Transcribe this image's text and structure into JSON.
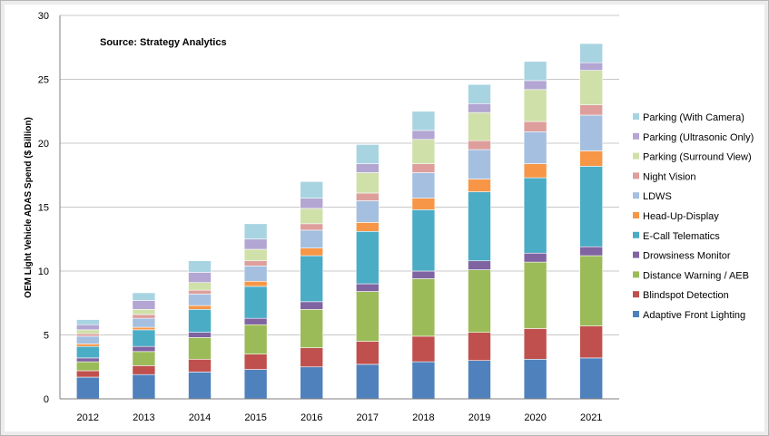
{
  "chart_data": {
    "type": "bar",
    "stacked": true,
    "title": "",
    "annotation": "Source: Strategy Analytics",
    "xlabel": "",
    "ylabel": "OEM Light Vehicle ADAS Spend ($ Billion)",
    "ylim": [
      0,
      30
    ],
    "yticks": [
      0,
      5,
      10,
      15,
      20,
      25,
      30
    ],
    "grid": true,
    "legend_position": "right",
    "categories": [
      "2012",
      "2013",
      "2014",
      "2015",
      "2016",
      "2017",
      "2018",
      "2019",
      "2020",
      "2021"
    ],
    "series": [
      {
        "name": "Adaptive Front Lighting",
        "color": "#4f81bd",
        "values": [
          1.7,
          1.9,
          2.1,
          2.3,
          2.5,
          2.7,
          2.9,
          3.0,
          3.1,
          3.2
        ]
      },
      {
        "name": "Blindspot Detection",
        "color": "#c0504d",
        "values": [
          0.5,
          0.7,
          1.0,
          1.2,
          1.5,
          1.8,
          2.0,
          2.2,
          2.4,
          2.5
        ]
      },
      {
        "name": "Distance Warning / AEB",
        "color": "#9bbb59",
        "values": [
          0.7,
          1.1,
          1.7,
          2.3,
          3.0,
          3.9,
          4.5,
          4.9,
          5.2,
          5.5
        ]
      },
      {
        "name": "Drowsiness Monitor",
        "color": "#8064a2",
        "values": [
          0.3,
          0.4,
          0.4,
          0.5,
          0.6,
          0.6,
          0.6,
          0.7,
          0.7,
          0.7
        ]
      },
      {
        "name": "E-Call Telematics",
        "color": "#4bacc6",
        "values": [
          0.9,
          1.3,
          1.8,
          2.5,
          3.6,
          4.1,
          4.8,
          5.4,
          5.9,
          6.3
        ]
      },
      {
        "name": "Head-Up-Display",
        "color": "#f79646",
        "values": [
          0.2,
          0.2,
          0.3,
          0.4,
          0.6,
          0.7,
          0.9,
          1.0,
          1.1,
          1.2
        ]
      },
      {
        "name": "LDWS",
        "color": "#a5bfe0",
        "values": [
          0.6,
          0.7,
          0.9,
          1.2,
          1.4,
          1.7,
          2.0,
          2.3,
          2.5,
          2.8
        ]
      },
      {
        "name": "Night Vision",
        "color": "#dd9e9c",
        "values": [
          0.2,
          0.3,
          0.3,
          0.4,
          0.5,
          0.6,
          0.7,
          0.7,
          0.8,
          0.8
        ]
      },
      {
        "name": "Parking (Surround View)",
        "color": "#cfe0a9",
        "values": [
          0.3,
          0.4,
          0.6,
          0.9,
          1.2,
          1.6,
          1.9,
          2.2,
          2.5,
          2.7
        ]
      },
      {
        "name": "Parking (Ultrasonic Only)",
        "color": "#b3a6d2",
        "values": [
          0.4,
          0.7,
          0.8,
          0.8,
          0.8,
          0.7,
          0.7,
          0.7,
          0.7,
          0.6
        ]
      },
      {
        "name": "Parking (With Camera)",
        "color": "#a8d4e2",
        "values": [
          0.4,
          0.6,
          0.9,
          1.2,
          1.3,
          1.5,
          1.5,
          1.5,
          1.5,
          1.5
        ]
      }
    ]
  }
}
